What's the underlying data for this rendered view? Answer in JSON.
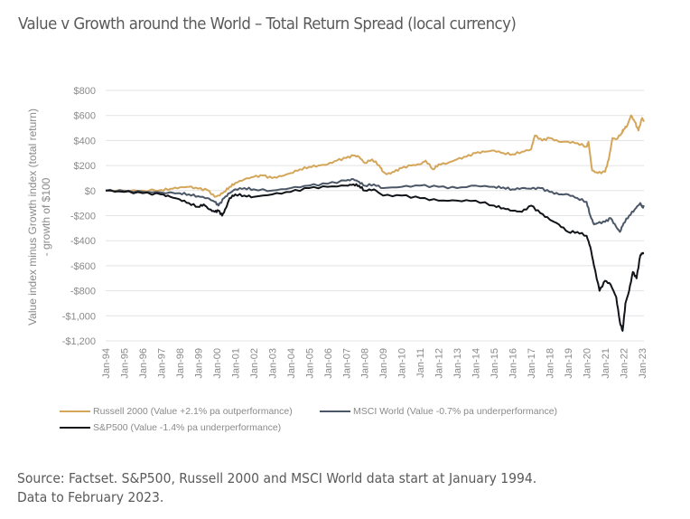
{
  "page": {
    "title": "Value v Growth around the World – Total Return Spread (local currency)",
    "source_line1": "Source: Factset. S&P500, Russell 2000 and MSCI World data start at January 1994.",
    "source_line2": "Data to February 2023."
  },
  "chart_data": {
    "type": "line",
    "title": "Value v Growth around the World – Total Return Spread (local currency)",
    "xlabel": "",
    "ylabel": "Value index minus Growth index (total return) - growth of $100",
    "ylabel_lines": [
      "Value index minus Growth index (total return)",
      "- growth of $100"
    ],
    "ylim": [
      -1200,
      800
    ],
    "xlim": [
      1994,
      2023.1
    ],
    "grid": "horizontal",
    "legend_position": "bottom",
    "y_ticks": [
      800,
      600,
      400,
      200,
      0,
      -200,
      -400,
      -600,
      -800,
      -1000,
      -1200
    ],
    "y_tick_labels": [
      "$800",
      "$600",
      "$400",
      "$200",
      "$0",
      "-$200",
      "-$400",
      "-$600",
      "-$800",
      "-$1,000",
      "-$1,200"
    ],
    "x_ticks": [
      1994,
      1995,
      1996,
      1997,
      1998,
      1999,
      2000,
      2001,
      2002,
      2003,
      2004,
      2005,
      2006,
      2007,
      2008,
      2009,
      2010,
      2011,
      2012,
      2013,
      2014,
      2015,
      2016,
      2017,
      2018,
      2019,
      2020,
      2021,
      2022,
      2023
    ],
    "x_tick_labels": [
      "Jan-94",
      "Jan-95",
      "Jan-96",
      "Jan-97",
      "Jan-98",
      "Jan-99",
      "Jan-00",
      "Jan-01",
      "Jan-02",
      "Jan-03",
      "Jan-04",
      "Jan-05",
      "Jan-06",
      "Jan-07",
      "Jan-08",
      "Jan-09",
      "Jan-10",
      "Jan-11",
      "Jan-12",
      "Jan-13",
      "Jan-14",
      "Jan-15",
      "Jan-16",
      "Jan-17",
      "Jan-18",
      "Jan-19",
      "Jan-20",
      "Jan-21",
      "Jan-22",
      "Jan-23"
    ],
    "series": [
      {
        "name": "Russell 2000 (Value +2.1% pa outperformance)",
        "color": "#d4a65a",
        "x": [
          1994,
          1995,
          1996,
          1997,
          1997.5,
          1998,
          1998.5,
          1999,
          1999.5,
          1999.9,
          2000.1,
          2000.4,
          2000.7,
          2001,
          2001.5,
          2002,
          2002.5,
          2003,
          2003.5,
          2004,
          2004.5,
          2005,
          2005.5,
          2006,
          2006.5,
          2007,
          2007.4,
          2007.7,
          2008,
          2008.4,
          2008.8,
          2009,
          2009.2,
          2009.6,
          2010,
          2010.5,
          2011,
          2011.3,
          2011.7,
          2012,
          2012.5,
          2013,
          2013.5,
          2014,
          2014.5,
          2015,
          2015.5,
          2016,
          2016.5,
          2017,
          2017.2,
          2017.6,
          2018,
          2018.5,
          2019,
          2019.5,
          2020,
          2020.1,
          2020.3,
          2020.6,
          2021,
          2021.2,
          2021.4,
          2021.6,
          2021.9,
          2022,
          2022.2,
          2022.4,
          2022.6,
          2022.8,
          2023,
          2023.1
        ],
        "y": [
          0,
          0,
          0,
          5,
          15,
          25,
          30,
          15,
          5,
          -50,
          -40,
          -10,
          30,
          60,
          90,
          110,
          120,
          100,
          115,
          140,
          170,
          190,
          200,
          210,
          240,
          260,
          280,
          270,
          220,
          250,
          200,
          150,
          130,
          150,
          180,
          200,
          210,
          240,
          170,
          210,
          220,
          250,
          270,
          300,
          310,
          320,
          300,
          290,
          310,
          330,
          440,
          400,
          420,
          390,
          390,
          380,
          350,
          390,
          160,
          140,
          150,
          250,
          420,
          410,
          460,
          490,
          520,
          600,
          550,
          480,
          580,
          550
        ]
      },
      {
        "name": "MSCI World (Value -0.7% pa underperformance)",
        "color": "#4b5767",
        "x": [
          1994,
          1995,
          1996,
          1997,
          1998,
          1998.5,
          1999,
          1999.5,
          1999.9,
          2000.1,
          2000.4,
          2000.7,
          2001,
          2001.5,
          2002,
          2003,
          2004,
          2005,
          2006,
          2007,
          2007.4,
          2007.7,
          2008,
          2008.5,
          2009,
          2010,
          2011,
          2012,
          2013,
          2014,
          2015,
          2015.5,
          2016,
          2016.5,
          2017,
          2017.5,
          2018,
          2018.5,
          2019,
          2019.5,
          2020,
          2020.2,
          2020.4,
          2020.6,
          2021,
          2021.3,
          2021.6,
          2021.8,
          2022,
          2022.3,
          2022.6,
          2022.9,
          2023,
          2023.1
        ],
        "y": [
          0,
          -5,
          -10,
          -15,
          -20,
          -30,
          -45,
          -60,
          -90,
          -120,
          -60,
          -20,
          10,
          20,
          10,
          0,
          20,
          40,
          55,
          80,
          90,
          70,
          40,
          50,
          20,
          30,
          40,
          30,
          20,
          40,
          30,
          25,
          10,
          20,
          15,
          20,
          -10,
          -30,
          -30,
          -60,
          -90,
          -200,
          -270,
          -260,
          -250,
          -220,
          -290,
          -330,
          -260,
          -200,
          -150,
          -100,
          -130,
          -130
        ]
      },
      {
        "name": "S&P500 (Value -1.4% pa underperformance)",
        "color": "#111418",
        "x": [
          1994,
          1995,
          1996,
          1997,
          1997.5,
          1998,
          1998.5,
          1999,
          1999.3,
          1999.6,
          1999.9,
          2000.1,
          2000.3,
          2000.5,
          2000.7,
          2001,
          2001.5,
          2002,
          2003,
          2004,
          2005,
          2006,
          2007,
          2007.4,
          2007.7,
          2008,
          2008.5,
          2009,
          2010,
          2011,
          2012,
          2013,
          2014,
          2015,
          2015.5,
          2016,
          2016.5,
          2017,
          2017.5,
          2018,
          2018.5,
          2019,
          2019.5,
          2020,
          2020.2,
          2020.4,
          2020.7,
          2021,
          2021.3,
          2021.6,
          2021.8,
          2021.95,
          2022.1,
          2022.3,
          2022.5,
          2022.7,
          2022.9,
          2023,
          2023.1
        ],
        "y": [
          0,
          -10,
          -20,
          -30,
          -50,
          -70,
          -100,
          -130,
          -110,
          -150,
          -170,
          -160,
          -200,
          -140,
          -60,
          -30,
          -40,
          -50,
          -30,
          -10,
          20,
          30,
          40,
          50,
          40,
          0,
          10,
          -40,
          -40,
          -60,
          -80,
          -80,
          -80,
          -120,
          -140,
          -160,
          -170,
          -120,
          -180,
          -230,
          -270,
          -330,
          -330,
          -360,
          -450,
          -600,
          -800,
          -720,
          -750,
          -850,
          -1050,
          -1120,
          -900,
          -800,
          -650,
          -700,
          -520,
          -500,
          -500
        ]
      }
    ]
  }
}
